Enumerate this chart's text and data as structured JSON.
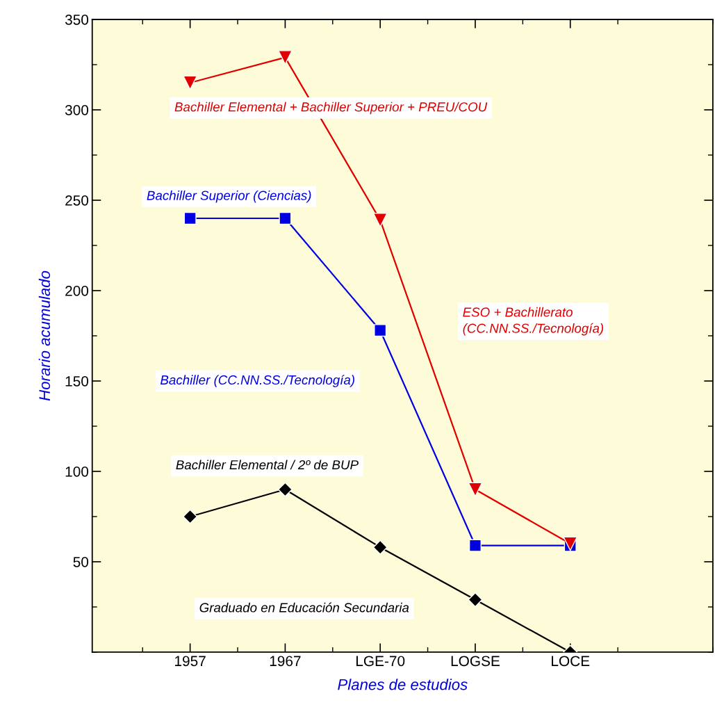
{
  "chart_data": {
    "type": "line",
    "xlabel": "Planes de estudios",
    "ylabel": "Horario acumulado",
    "categories": [
      "1957",
      "1967",
      "LGE-70",
      "LOGSE",
      "LOCE"
    ],
    "series": [
      {
        "name": "Bachiller Elemental + Bachiller Superior + PREU/COU",
        "color": "#e00000",
        "marker": "triangle_down",
        "values": [
          315,
          329,
          239,
          90,
          60
        ]
      },
      {
        "name": "Bachiller Superior (Ciencias)",
        "color": "#0000e0",
        "marker": "square",
        "values": [
          240,
          240,
          178,
          59,
          59
        ]
      },
      {
        "name": "Bachiller Elemental / 2º de BUP",
        "color": "#000000",
        "marker": "diamond",
        "values": [
          75,
          90,
          58,
          29,
          0
        ]
      }
    ],
    "annotations": [
      "ESO + Bachillerato\n(CC.NN.SS./Tecnología)",
      "Bachiller (CC.NN.SS./Tecnología)",
      "Graduado en Educación Secundaria"
    ],
    "ylim": [
      0,
      350
    ],
    "yticks": [
      50,
      100,
      150,
      200,
      250,
      300,
      350
    ],
    "grid": false,
    "legend": false
  }
}
